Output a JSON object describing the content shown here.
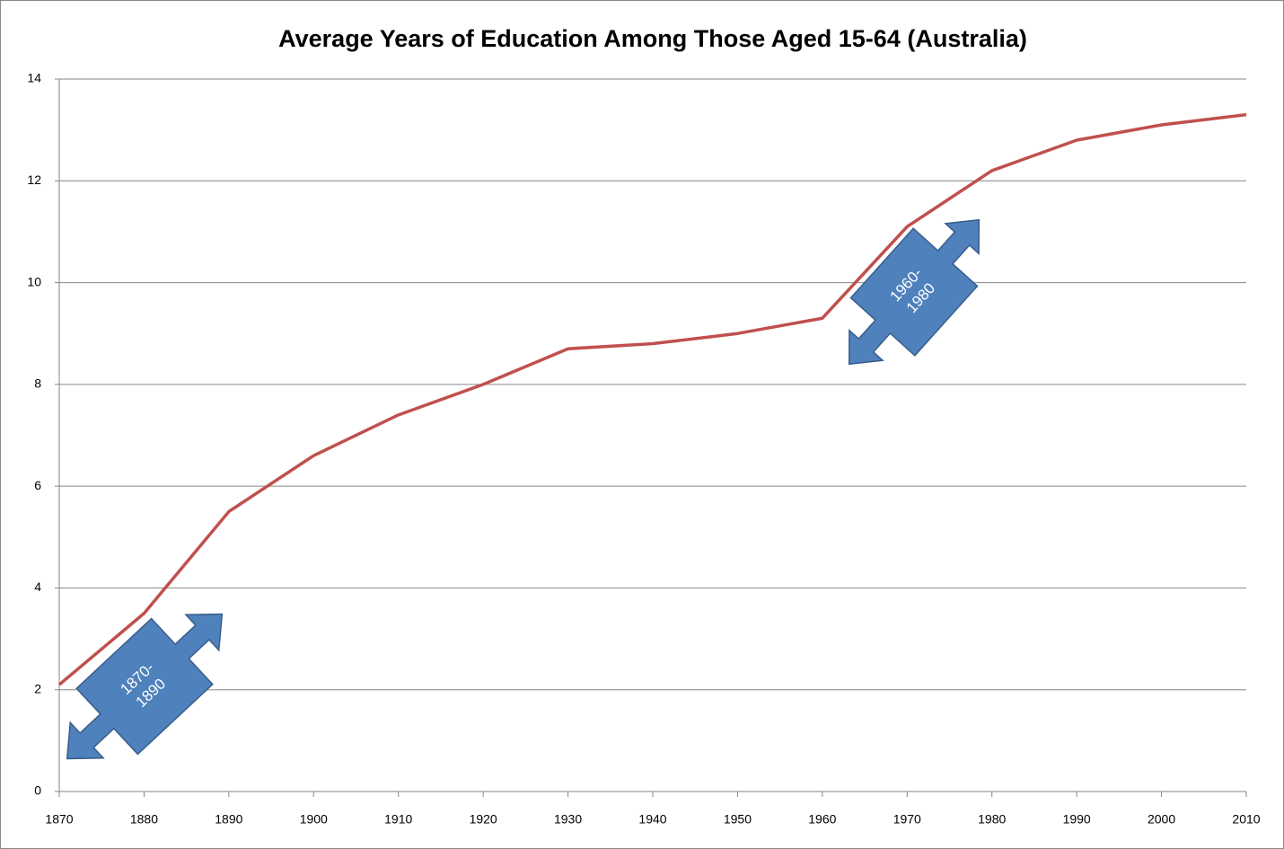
{
  "chart_data": {
    "type": "line",
    "title": "Average Years of Education Among Those Aged 15-64 (Australia)",
    "x": [
      1870,
      1880,
      1890,
      1900,
      1910,
      1920,
      1930,
      1940,
      1950,
      1960,
      1970,
      1980,
      1990,
      2000,
      2010
    ],
    "series": [
      {
        "name": "Australia",
        "color": "#c0504d",
        "values": [
          2.1,
          3.5,
          5.5,
          6.6,
          7.4,
          8.0,
          8.7,
          8.8,
          9.0,
          9.3,
          11.1,
          12.2,
          12.8,
          13.1,
          13.3
        ]
      }
    ],
    "xlim": [
      1870,
      2010
    ],
    "xticks": [
      1870,
      1880,
      1890,
      1900,
      1910,
      1920,
      1930,
      1940,
      1950,
      1960,
      1970,
      1980,
      1990,
      2000,
      2010
    ],
    "ylim": [
      0,
      14
    ],
    "yticks": [
      0,
      2,
      4,
      6,
      8,
      10,
      12,
      14
    ],
    "grid": true,
    "annotations": [
      {
        "lines": [
          "1870-",
          "1890"
        ]
      },
      {
        "lines": [
          "1960-",
          "1980"
        ]
      }
    ]
  }
}
